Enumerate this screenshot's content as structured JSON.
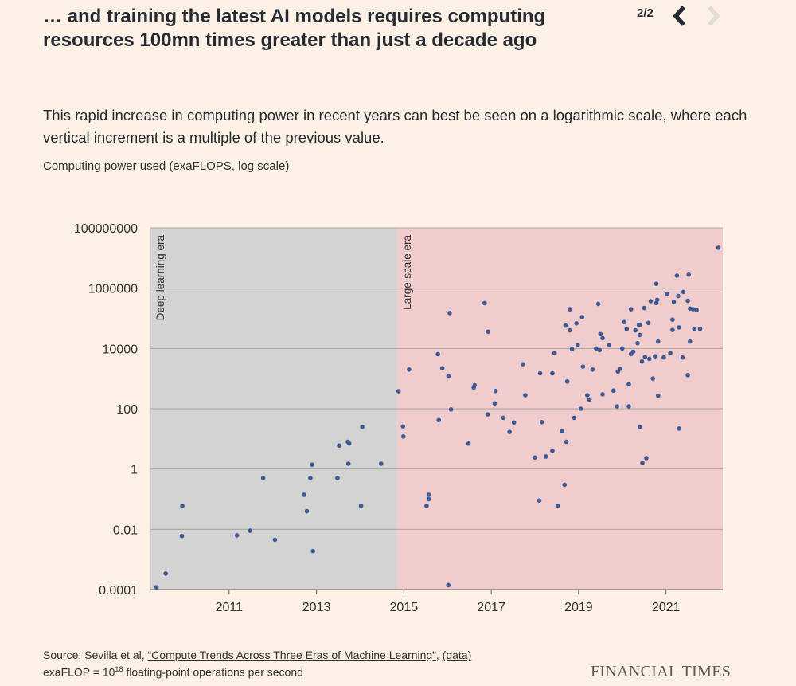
{
  "header": {
    "title": "… and training the latest AI models requires computing resources 100mn times greater than just a decade ago",
    "pager": "2/2"
  },
  "subtitle": "This rapid increase in computing power in recent years can best be seen on a logarithmic scale, where each vertical increment is a multiple of the previous value.",
  "footer": {
    "source_prefix": "Source: Sevilla et al, ",
    "source_link": "“Compute Trends Across Three Eras of Machine Learning”",
    "source_sep": ", ",
    "data_link": "(data)",
    "note_prefix": "exaFLOP = 10",
    "note_sup": "18",
    "note_suffix": " floating-point operations per second",
    "brand": "FINANCIAL TIMES"
  },
  "colors": {
    "background": "#fdf1e5",
    "deep_era": "#d3d3d3",
    "large_era": "#f0cdcc",
    "dot": "#3e5a94",
    "nav_active": "#262a33",
    "nav_disabled": "#e3ddd6"
  },
  "chart_data": {
    "type": "scatter",
    "title": "Computing power used (exaFLOPS, log scale)",
    "ylabel": "Computing power used (exaFLOPS, log scale)",
    "yscale": "log",
    "ylim": [
      0.0001,
      100000000
    ],
    "xlim": [
      2009.2,
      2022.3
    ],
    "y_ticks": [
      {
        "value": 100000000,
        "label": "100000000"
      },
      {
        "value": 1000000,
        "label": "1000000"
      },
      {
        "value": 10000,
        "label": "10000"
      },
      {
        "value": 100,
        "label": "100"
      },
      {
        "value": 1,
        "label": "1"
      },
      {
        "value": 0.01,
        "label": "0.01"
      },
      {
        "value": 0.0001,
        "label": "0.0001"
      }
    ],
    "x_ticks": [
      {
        "value": 2011,
        "label": "2011"
      },
      {
        "value": 2013,
        "label": "2013"
      },
      {
        "value": 2015,
        "label": "2015"
      },
      {
        "value": 2017,
        "label": "2017"
      },
      {
        "value": 2019,
        "label": "2019"
      },
      {
        "value": 2021,
        "label": "2021"
      }
    ],
    "eras": [
      {
        "name": "Deep learning era",
        "start": 2009.2,
        "end": 2014.85
      },
      {
        "name": "Large-scale era",
        "start": 2014.85,
        "end": 2022.3
      }
    ],
    "points": [
      [
        2009.34,
        0.00012
      ],
      [
        2009.55,
        0.00034
      ],
      [
        2009.92,
        0.006
      ],
      [
        2009.93,
        0.06
      ],
      [
        2011.18,
        0.0063
      ],
      [
        2011.48,
        0.009
      ],
      [
        2011.78,
        0.5
      ],
      [
        2012.05,
        0.0045
      ],
      [
        2012.72,
        0.14
      ],
      [
        2012.78,
        0.04
      ],
      [
        2012.86,
        0.5
      ],
      [
        2012.92,
        0.0019
      ],
      [
        2012.9,
        1.4
      ],
      [
        2013.48,
        0.5
      ],
      [
        2013.52,
        6
      ],
      [
        2013.72,
        8
      ],
      [
        2013.75,
        7
      ],
      [
        2013.73,
        1.5
      ],
      [
        2014.02,
        0.06
      ],
      [
        2014.05,
        25
      ],
      [
        2014.48,
        1.5
      ],
      [
        2014.88,
        380
      ],
      [
        2014.98,
        26
      ],
      [
        2014.99,
        12
      ],
      [
        2015.12,
        2000
      ],
      [
        2015.52,
        0.06
      ],
      [
        2015.57,
        0.1
      ],
      [
        2015.57,
        0.14
      ],
      [
        2015.78,
        6500
      ],
      [
        2015.8,
        42
      ],
      [
        2015.88,
        2200
      ],
      [
        2016.02,
        0.00014
      ],
      [
        2016.02,
        1200
      ],
      [
        2016.05,
        150000
      ],
      [
        2016.08,
        95
      ],
      [
        2016.48,
        7
      ],
      [
        2016.6,
        500
      ],
      [
        2016.62,
        600
      ],
      [
        2016.85,
        320000
      ],
      [
        2016.92,
        65
      ],
      [
        2016.93,
        36000
      ],
      [
        2017.08,
        150
      ],
      [
        2017.1,
        390
      ],
      [
        2017.28,
        50
      ],
      [
        2017.42,
        17
      ],
      [
        2017.52,
        35
      ],
      [
        2017.72,
        3000
      ],
      [
        2017.78,
        280
      ],
      [
        2018.0,
        2.4
      ],
      [
        2018.1,
        0.09
      ],
      [
        2018.12,
        1500
      ],
      [
        2018.16,
        36
      ],
      [
        2018.25,
        2.6
      ],
      [
        2018.4,
        4
      ],
      [
        2018.4,
        1500
      ],
      [
        2018.45,
        7000
      ],
      [
        2018.52,
        0.06
      ],
      [
        2018.62,
        18
      ],
      [
        2018.68,
        0.3
      ],
      [
        2018.7,
        57000
      ],
      [
        2018.72,
        8
      ],
      [
        2018.74,
        800
      ],
      [
        2018.8,
        40000
      ],
      [
        2018.8,
        200000
      ],
      [
        2018.85,
        9500
      ],
      [
        2018.9,
        50
      ],
      [
        2018.95,
        68000
      ],
      [
        2018.98,
        13000
      ],
      [
        2019.05,
        100
      ],
      [
        2019.08,
        110000
      ],
      [
        2019.1,
        2500
      ],
      [
        2019.2,
        280
      ],
      [
        2019.25,
        200
      ],
      [
        2019.32,
        2000
      ],
      [
        2019.4,
        10000
      ],
      [
        2019.45,
        300000
      ],
      [
        2019.48,
        8800
      ],
      [
        2019.5,
        30000
      ],
      [
        2019.55,
        300
      ],
      [
        2019.55,
        22000
      ],
      [
        2019.7,
        13000
      ],
      [
        2019.8,
        400
      ],
      [
        2019.88,
        120
      ],
      [
        2019.9,
        1700
      ],
      [
        2019.95,
        2100
      ],
      [
        2020.0,
        10000
      ],
      [
        2020.05,
        75000
      ],
      [
        2020.1,
        44000
      ],
      [
        2020.15,
        120
      ],
      [
        2020.15,
        650
      ],
      [
        2020.2,
        6500
      ],
      [
        2020.2,
        200000
      ],
      [
        2020.25,
        7800
      ],
      [
        2020.3,
        40000
      ],
      [
        2020.35,
        15000
      ],
      [
        2020.38,
        60000
      ],
      [
        2020.4,
        28000
      ],
      [
        2020.4,
        60000
      ],
      [
        2020.4,
        25
      ],
      [
        2020.45,
        3700
      ],
      [
        2020.46,
        1.6
      ],
      [
        2020.5,
        220000
      ],
      [
        2020.52,
        5200
      ],
      [
        2020.55,
        2.3
      ],
      [
        2020.6,
        70000
      ],
      [
        2020.62,
        4500
      ],
      [
        2020.65,
        370000
      ],
      [
        2020.7,
        1000
      ],
      [
        2020.75,
        5500
      ],
      [
        2020.78,
        320000
      ],
      [
        2020.78,
        1400000
      ],
      [
        2020.8,
        410000
      ],
      [
        2020.82,
        17000
      ],
      [
        2020.82,
        270
      ],
      [
        2020.95,
        5000
      ],
      [
        2021.02,
        650000
      ],
      [
        2021.1,
        7000
      ],
      [
        2021.15,
        41000
      ],
      [
        2021.15,
        90000
      ],
      [
        2021.18,
        350000
      ],
      [
        2021.25,
        2600000
      ],
      [
        2021.28,
        550000
      ],
      [
        2021.3,
        50000
      ],
      [
        2021.3,
        22
      ],
      [
        2021.38,
        5000
      ],
      [
        2021.4,
        750000
      ],
      [
        2021.5,
        1300
      ],
      [
        2021.5,
        380000
      ],
      [
        2021.52,
        2800000
      ],
      [
        2021.55,
        210000
      ],
      [
        2021.55,
        17000
      ],
      [
        2021.62,
        200000
      ],
      [
        2021.65,
        45000
      ],
      [
        2021.7,
        190000
      ],
      [
        2021.78,
        45000
      ],
      [
        2022.2,
        22000000
      ]
    ]
  }
}
